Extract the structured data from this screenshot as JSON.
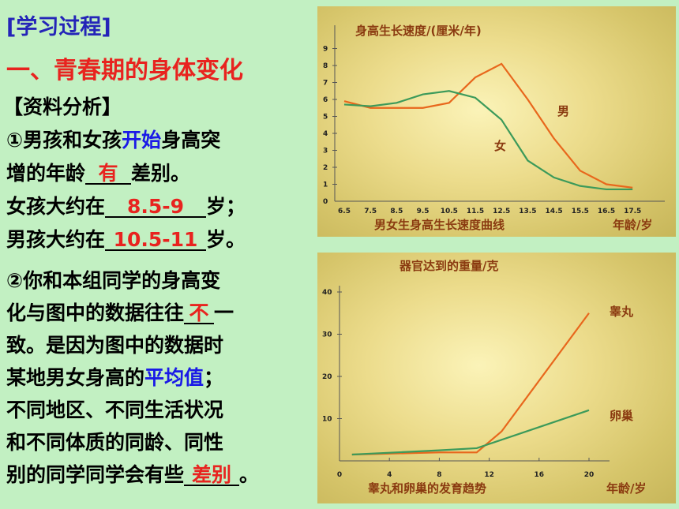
{
  "left": {
    "heading": "[学习过程]",
    "section_title": "一、青春期的身体变化",
    "subheading": "【资料分析】",
    "q1": {
      "line1_a": "①男孩和女孩",
      "line1_blue": "开始",
      "line1_b": "身高突",
      "line2_a": "增的年龄",
      "line2_blank": "有",
      "line2_b": "差别。",
      "line3_a": "女孩大约在",
      "line3_blank": "8.5-9",
      "line3_b": "岁；",
      "line4_a": "男孩大约在",
      "line4_blank": "10.5-11",
      "line4_b": "岁。"
    },
    "q2": {
      "line1": "②你和本组同学的身高变",
      "line2_a": "化与图中的数据往往",
      "line2_blank": "不",
      "line2_b": "一",
      "line3": "致。是因为图中的数据时",
      "line4_a": "某地男女身高的",
      "line4_blue": "平均值",
      "line4_b": "；",
      "line5": "不同地区、不同生活状况",
      "line6": "和不同体质的同龄、同性",
      "line7_a": "别的同学同学会有些",
      "line7_blank": "差别",
      "line7_b": "。"
    }
  },
  "chart_data": [
    {
      "type": "line",
      "title": "身高生长速度/(厘米/年)",
      "xlabel": "男女生身高生长速度曲线",
      "xunit": "年龄/岁",
      "x": [
        6.5,
        7.5,
        8.5,
        9.5,
        10.5,
        11.5,
        12.5,
        13.5,
        14.5,
        15.5,
        16.5,
        17.5
      ],
      "x_tick_labels": [
        "6.5",
        "7.5",
        "8.5",
        "9.5",
        "10.5",
        "11.5",
        "12.5",
        "13.5",
        "14.5",
        "15.5",
        "16.5",
        "17.5"
      ],
      "y_ticks": [
        0,
        1,
        2,
        3,
        4,
        5,
        6,
        7,
        8,
        9
      ],
      "ylim": [
        0,
        9.5
      ],
      "series": [
        {
          "name": "男",
          "color": "#e8671c",
          "values": [
            5.9,
            5.5,
            5.5,
            5.5,
            5.8,
            7.3,
            8.1,
            6.0,
            3.7,
            1.8,
            1.0,
            0.8
          ]
        },
        {
          "name": "女",
          "color": "#3c9a5a",
          "values": [
            5.7,
            5.6,
            5.8,
            6.3,
            6.5,
            6.1,
            4.8,
            2.4,
            1.4,
            0.9,
            0.7,
            0.7
          ]
        }
      ]
    },
    {
      "type": "line",
      "title": "器官达到的重量/克",
      "xlabel": "睾丸和卵巢的发育趋势",
      "xunit": "年龄/岁",
      "x_tick_labels": [
        "0",
        "4",
        "8",
        "12",
        "16",
        "20"
      ],
      "y_tick_labels": [
        "10",
        "20",
        "30",
        "40"
      ],
      "xlim": [
        0,
        21
      ],
      "ylim": [
        0,
        42
      ],
      "series": [
        {
          "name": "睾丸",
          "color": "#e8671c",
          "x": [
            1,
            8,
            11,
            13,
            20
          ],
          "y": [
            1.5,
            2,
            2,
            7,
            35
          ]
        },
        {
          "name": "卵巢",
          "color": "#3c9a5a",
          "x": [
            1,
            8,
            11,
            14,
            20
          ],
          "y": [
            1.5,
            2.5,
            3,
            6,
            12
          ]
        }
      ]
    }
  ]
}
